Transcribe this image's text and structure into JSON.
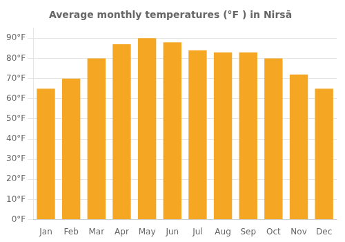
{
  "chart_data": {
    "type": "bar",
    "title": "Average monthly temperatures (°F ) in Nirsā",
    "categories": [
      "Jan",
      "Feb",
      "Mar",
      "Apr",
      "May",
      "Jun",
      "Jul",
      "Aug",
      "Sep",
      "Oct",
      "Nov",
      "Dec"
    ],
    "values": [
      65,
      70,
      80,
      87,
      90,
      88,
      84,
      83,
      83,
      80,
      72,
      65
    ],
    "color": "#F5A623",
    "ylim": [
      0,
      95
    ],
    "yticks": [
      {
        "value": 0,
        "label": "0°F"
      },
      {
        "value": 10,
        "label": "10°F"
      },
      {
        "value": 20,
        "label": "20°F"
      },
      {
        "value": 30,
        "label": "30°F"
      },
      {
        "value": 40,
        "label": "40°F"
      },
      {
        "value": 50,
        "label": "50°F"
      },
      {
        "value": 60,
        "label": "60°F"
      },
      {
        "value": 70,
        "label": "70°F"
      },
      {
        "value": 80,
        "label": "80°F"
      },
      {
        "value": 90,
        "label": "90°F"
      }
    ],
    "grid": true
  }
}
